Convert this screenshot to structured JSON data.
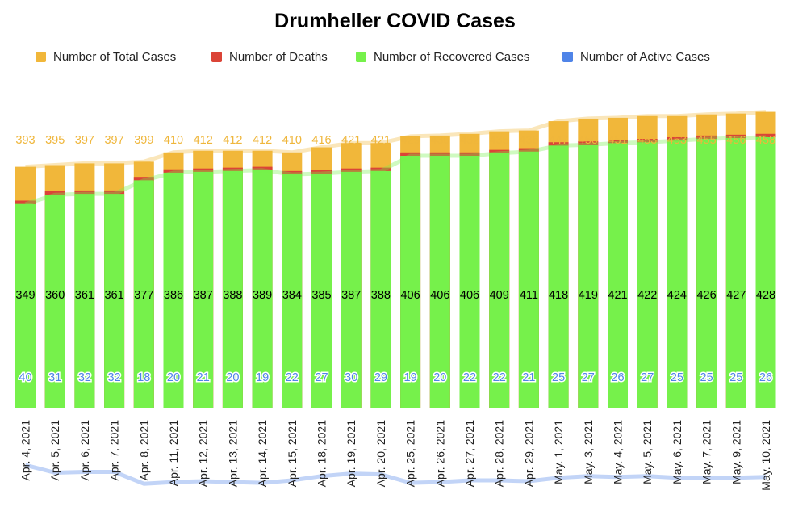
{
  "chart_data": {
    "type": "bar",
    "title": "Drumheller COVID Cases",
    "xlabel": "",
    "ylabel": "",
    "categories": [
      "Apr. 4, 2021",
      "Apr. 5, 2021",
      "Apr. 6, 2021",
      "Apr. 7, 2021",
      "Apr. 8, 2021",
      "Apr. 11, 2021",
      "Apr. 12, 2021",
      "Apr. 13, 2021",
      "Apr. 14, 2021",
      "Apr. 15, 2021",
      "Apr. 18, 2021",
      "Apr. 19, 2021",
      "Apr. 20, 2021",
      "Apr. 25, 2021",
      "Apr. 26, 2021",
      "Apr. 27, 2021",
      "Apr. 28, 2021",
      "Apr. 29, 2021",
      "May. 1, 2021",
      "May. 3, 2021",
      "May. 4, 2021",
      "May. 5, 2021",
      "May. 6, 2021",
      "May. 7, 2021",
      "May. 9, 2021",
      "May. 10, 2021"
    ],
    "series": [
      {
        "name": "Number of Total Cases",
        "color": "#f1b73a",
        "values": [
          393,
          395,
          397,
          397,
          399,
          410,
          412,
          412,
          412,
          410,
          416,
          421,
          421,
          429,
          430,
          432,
          435,
          436,
          447,
          450,
          451,
          453,
          453,
          455,
          456,
          458
        ]
      },
      {
        "name": "Number of Deaths",
        "color": "#db4437",
        "values": [
          4,
          4,
          4,
          4,
          4,
          4,
          4,
          4,
          4,
          4,
          4,
          4,
          4,
          4,
          4,
          4,
          4,
          4,
          4,
          4,
          4,
          4,
          4,
          4,
          4,
          4
        ]
      },
      {
        "name": "Number of Recovered Cases",
        "color": "#76f14b",
        "values": [
          349,
          360,
          361,
          361,
          377,
          386,
          387,
          388,
          389,
          384,
          385,
          387,
          388,
          406,
          406,
          406,
          409,
          411,
          418,
          419,
          421,
          422,
          424,
          426,
          427,
          428
        ]
      },
      {
        "name": "Number of Active Cases",
        "color": "#4f84e8",
        "values": [
          40,
          31,
          32,
          32,
          18,
          20,
          21,
          20,
          19,
          22,
          27,
          30,
          29,
          19,
          20,
          22,
          22,
          21,
          25,
          27,
          26,
          27,
          25,
          25,
          25,
          26
        ]
      }
    ],
    "grid": false,
    "legend_position": "top",
    "bar_layout": "overlapping"
  }
}
